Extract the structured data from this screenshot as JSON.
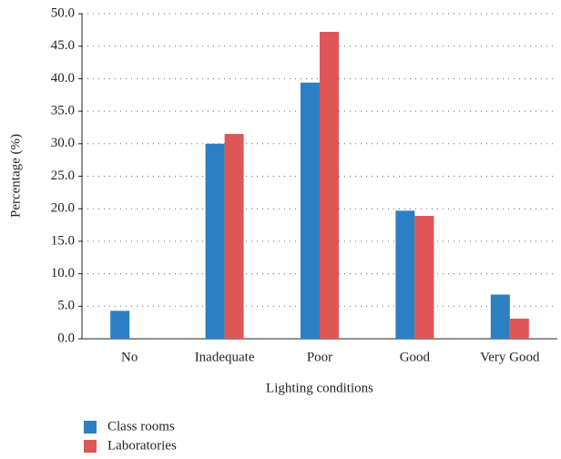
{
  "chart_data": {
    "type": "bar",
    "xlabel": "Lighting conditions",
    "ylabel": "Percentage (%)",
    "categories": [
      "No",
      "Inadequate",
      "Poor",
      "Good",
      "Very Good"
    ],
    "series": [
      {
        "name": "Class rooms",
        "color": "#2b7fc2",
        "values": [
          4.3,
          30.0,
          39.4,
          19.7,
          6.8
        ]
      },
      {
        "name": "Laboratories",
        "color": "#e05656",
        "values": [
          0,
          31.5,
          47.2,
          18.9,
          3.1
        ]
      }
    ],
    "ylim": [
      0,
      50
    ],
    "yticks": [
      {
        "value": 0,
        "label": "0.0"
      },
      {
        "value": 5,
        "label": "5.0"
      },
      {
        "value": 10,
        "label": "10.0"
      },
      {
        "value": 15,
        "label": "15.0"
      },
      {
        "value": 20,
        "label": "20.0"
      },
      {
        "value": 25,
        "label": "25.0"
      },
      {
        "value": 30,
        "label": "30.0"
      },
      {
        "value": 35,
        "label": "35.0"
      },
      {
        "value": 40,
        "label": "40.0"
      },
      {
        "value": 45,
        "label": "45.0"
      },
      {
        "value": 50,
        "label": "50.0"
      }
    ],
    "grid": true
  }
}
